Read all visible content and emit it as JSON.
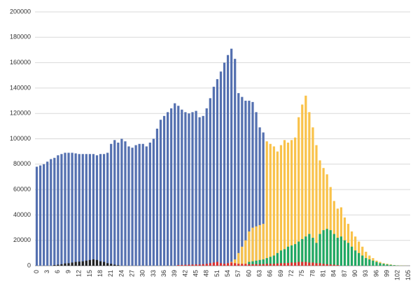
{
  "chart_data": {
    "type": "bar",
    "stacked": false,
    "grid": true,
    "categories": [
      0,
      null,
      null,
      3,
      null,
      null,
      6,
      null,
      null,
      9,
      null,
      null,
      12,
      null,
      null,
      15,
      null,
      null,
      18,
      null,
      null,
      21,
      null,
      null,
      24,
      null,
      null,
      27,
      null,
      null,
      30,
      null,
      null,
      33,
      null,
      null,
      36,
      null,
      null,
      39,
      null,
      null,
      42,
      null,
      null,
      45,
      null,
      null,
      48,
      null,
      null,
      51,
      null,
      null,
      54,
      null,
      null,
      57,
      null,
      null,
      60,
      null,
      null,
      63,
      null,
      null,
      66,
      null,
      null,
      69,
      null,
      null,
      72,
      null,
      null,
      75,
      null,
      null,
      78,
      null,
      null,
      81,
      null,
      null,
      84,
      null,
      null,
      87,
      null,
      null,
      90,
      null,
      null,
      93,
      null,
      null,
      96,
      null,
      null,
      99,
      null,
      null,
      102,
      null,
      null,
      105
    ],
    "ylim": [
      0,
      200000
    ],
    "yticks": [
      0,
      20000,
      40000,
      60000,
      80000,
      100000,
      120000,
      140000,
      160000,
      180000,
      200000
    ],
    "series": [
      {
        "color": "#5470b0",
        "values": [
          78000,
          79000,
          80000,
          82000,
          84000,
          85000,
          87000,
          88000,
          89000,
          89000,
          89000,
          88500,
          88000,
          88000,
          88000,
          88000,
          88000,
          87000,
          88000,
          88000,
          89000,
          96000,
          99000,
          97000,
          100000,
          98000,
          94000,
          93000,
          95000,
          96000,
          96000,
          94000,
          97000,
          100000,
          108000,
          115000,
          118000,
          121000,
          124000,
          128000,
          126000,
          123000,
          121000,
          120000,
          121000,
          122000,
          117000,
          118000,
          124000,
          132000,
          141000,
          147000,
          153000,
          160000,
          166000,
          171000,
          163000,
          136000,
          133000,
          130000,
          130000,
          129000,
          121000,
          109000,
          105000,
          null,
          null,
          null,
          null,
          null,
          null,
          null,
          null,
          null,
          null,
          null,
          null,
          null,
          null,
          null,
          null,
          null,
          null,
          null,
          null,
          null,
          null,
          null,
          null,
          null,
          null,
          null,
          null,
          null,
          null,
          null,
          null,
          null,
          null,
          null,
          null,
          null,
          null,
          null,
          null,
          null
        ]
      },
      {
        "color": "#f9c24a",
        "values": [
          null,
          null,
          null,
          null,
          null,
          null,
          null,
          null,
          null,
          null,
          null,
          null,
          null,
          null,
          null,
          null,
          null,
          null,
          null,
          null,
          null,
          null,
          null,
          null,
          null,
          null,
          null,
          null,
          null,
          null,
          null,
          null,
          null,
          null,
          null,
          null,
          null,
          null,
          null,
          null,
          null,
          null,
          null,
          null,
          null,
          null,
          null,
          null,
          null,
          null,
          null,
          null,
          null,
          1000,
          2000,
          3000,
          5000,
          10000,
          15000,
          20000,
          27000,
          30000,
          31000,
          32000,
          33000,
          98000,
          96000,
          94000,
          90000,
          95000,
          99000,
          97000,
          99000,
          101000,
          117000,
          127000,
          134000,
          121000,
          109000,
          95000,
          83000,
          77000,
          72000,
          62000,
          51000,
          45000,
          46000,
          38000,
          33000,
          27000,
          23000,
          19000,
          15000,
          11000,
          8000,
          6000,
          4000,
          3000,
          2000,
          1500,
          1000,
          500,
          300,
          200,
          100,
          null
        ]
      },
      {
        "color": "#1fa866",
        "values": [
          null,
          null,
          null,
          null,
          null,
          null,
          null,
          null,
          null,
          null,
          null,
          null,
          null,
          null,
          null,
          null,
          null,
          null,
          null,
          null,
          null,
          null,
          null,
          null,
          null,
          null,
          null,
          null,
          null,
          null,
          null,
          null,
          null,
          null,
          null,
          null,
          null,
          null,
          null,
          null,
          null,
          null,
          null,
          null,
          null,
          null,
          null,
          null,
          null,
          null,
          null,
          null,
          null,
          null,
          null,
          null,
          null,
          null,
          null,
          null,
          3000,
          3500,
          4000,
          4500,
          5000,
          6000,
          7000,
          8000,
          10000,
          12000,
          13000,
          15000,
          16000,
          17000,
          19000,
          21000,
          23000,
          25000,
          22000,
          18000,
          25000,
          28000,
          29000,
          28000,
          25000,
          22000,
          23000,
          20000,
          18000,
          15000,
          12000,
          10000,
          8000,
          6000,
          5000,
          4000,
          3000,
          2000,
          1500,
          1000,
          700,
          400,
          200,
          100,
          50,
          null
        ]
      },
      {
        "color": "#e03030",
        "values": [
          null,
          null,
          null,
          null,
          null,
          null,
          null,
          null,
          null,
          null,
          null,
          null,
          null,
          null,
          null,
          null,
          null,
          null,
          null,
          null,
          null,
          null,
          null,
          null,
          null,
          null,
          null,
          null,
          null,
          null,
          null,
          null,
          null,
          null,
          null,
          null,
          null,
          null,
          null,
          null,
          500,
          600,
          700,
          800,
          900,
          1000,
          1000,
          1200,
          1500,
          2000,
          2500,
          3000,
          2000,
          1500,
          2000,
          2500,
          2000,
          1500,
          1500,
          1500,
          1200,
          1200,
          1200,
          1200,
          1300,
          1500,
          1500,
          1500,
          1800,
          2000,
          2000,
          2200,
          2500,
          2500,
          3000,
          3000,
          3000,
          2500,
          2500,
          2000,
          2000,
          1500,
          1200,
          1000,
          800,
          500,
          null,
          null,
          null,
          null,
          null,
          null,
          null,
          null,
          null,
          null,
          null,
          null,
          null,
          null,
          null,
          null,
          null,
          null,
          null,
          null
        ]
      },
      {
        "color": "#222222",
        "values": [
          null,
          null,
          null,
          null,
          null,
          500,
          800,
          1200,
          1800,
          2000,
          2500,
          3000,
          3200,
          3500,
          4000,
          4500,
          5000,
          4500,
          3500,
          3000,
          2000,
          1500,
          800,
          400,
          null,
          null,
          null,
          null,
          null,
          null,
          null,
          null,
          null,
          null,
          null,
          null,
          null,
          null,
          null,
          null,
          null,
          null,
          null,
          null,
          null,
          null,
          null,
          null,
          null,
          null,
          null,
          null,
          null,
          null,
          null,
          null,
          null,
          null,
          null,
          null,
          null,
          null,
          null,
          null,
          null,
          null,
          null,
          null,
          null,
          null,
          null,
          null,
          null,
          null,
          null,
          null,
          null,
          null,
          null,
          null,
          null,
          null,
          null,
          null,
          null,
          null,
          null,
          null,
          null,
          null,
          null,
          null,
          null,
          null,
          null,
          null,
          null,
          null,
          null,
          null,
          null,
          null,
          null,
          null,
          null,
          null
        ]
      }
    ]
  }
}
